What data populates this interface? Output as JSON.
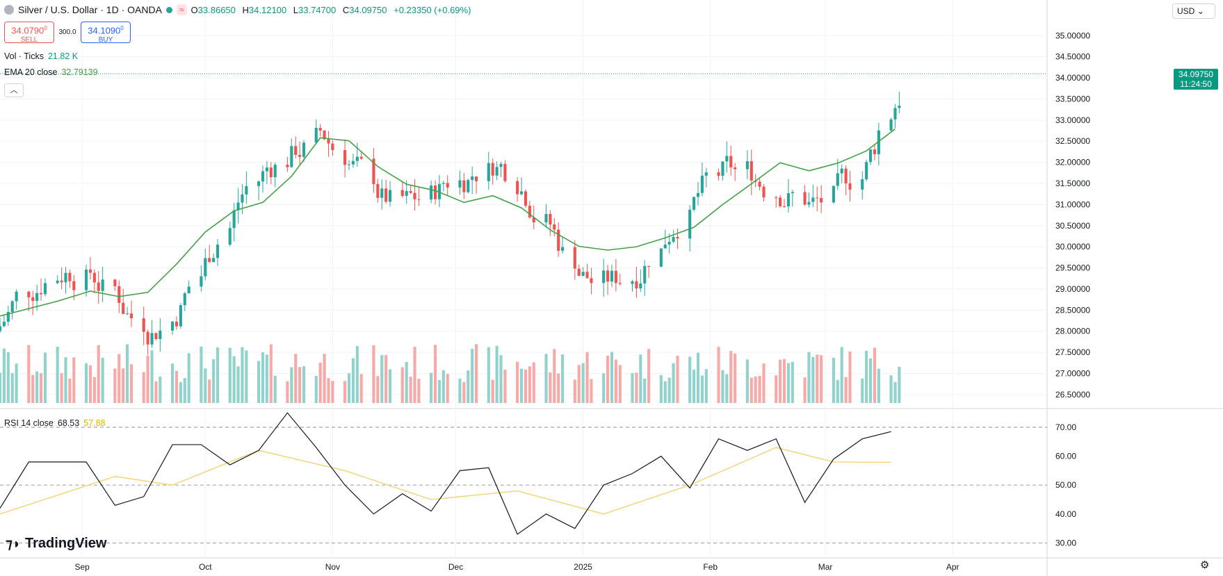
{
  "header": {
    "symbol": "Silver / U.S. Dollar · 1D · OANDA",
    "wave_badge": "≈",
    "ohlc": {
      "o_label": "O",
      "o": "33.86650",
      "h_label": "H",
      "h": "34.12100",
      "l_label": "L",
      "l": "33.74700",
      "c_label": "C",
      "c": "34.09750",
      "change": "+0.23350 (+0.69%)"
    }
  },
  "trade": {
    "sell_price": "34.0790",
    "sell_sup": "0",
    "sell_label": "SELL",
    "spread": "300.0",
    "buy_price": "34.1090",
    "buy_sup": "0",
    "buy_label": "BUY"
  },
  "indicators": {
    "vol_label": "Vol · Ticks",
    "vol_value": "21.82 K",
    "ema_label": "EMA 20 close",
    "ema_value": "32.79139",
    "rsi_label": "RSI 14 close",
    "rsi_value": "68.53",
    "rsi_ma_value": "57.88"
  },
  "currency": "USD",
  "last_price": {
    "price": "34.09750",
    "countdown": "11:24:50"
  },
  "logo_text": "TradingView",
  "colors": {
    "up": "#26a69a",
    "down": "#ef5350",
    "ema": "#43a047",
    "rsi": "#131722",
    "rsi_ma": "#f2d06b",
    "vol_up": "#92d2cc",
    "vol_down": "#f7a9a7"
  },
  "chart_data": [
    {
      "type": "candlestick",
      "title": "Silver / U.S. Dollar · 1D · OANDA",
      "price_ticks": [
        "35.00000",
        "34.50000",
        "34.00000",
        "33.50000",
        "33.00000",
        "32.50000",
        "32.00000",
        "31.50000",
        "31.00000",
        "30.50000",
        "30.00000",
        "29.50000",
        "29.00000",
        "28.50000",
        "28.00000",
        "27.50000",
        "27.00000",
        "26.50000"
      ],
      "ylim": [
        26.3,
        35.35
      ],
      "x_labels": [
        "Sep",
        "Oct",
        "Nov",
        "Dec",
        "2025",
        "Feb",
        "Mar",
        "Apr"
      ],
      "x_label_dates": [
        "2024-09-01",
        "2024-10-01",
        "2024-11-01",
        "2024-12-01",
        "2025-01-01",
        "2025-02-01",
        "2025-03-01",
        "2025-04-01"
      ],
      "x_range": [
        "2024-08-12",
        "2025-04-24"
      ],
      "grid": true,
      "series": [
        {
          "name": "EMA 20 close",
          "values": [
            {
              "d": "2024-08-12",
              "v": 28.36
            },
            {
              "d": "2024-08-26",
              "v": 28.71
            },
            {
              "d": "2024-09-03",
              "v": 28.95
            },
            {
              "d": "2024-09-10",
              "v": 28.82
            },
            {
              "d": "2024-09-17",
              "v": 28.92
            },
            {
              "d": "2024-09-24",
              "v": 29.59
            },
            {
              "d": "2024-10-01",
              "v": 30.35
            },
            {
              "d": "2024-10-08",
              "v": 30.85
            },
            {
              "d": "2024-10-15",
              "v": 31.05
            },
            {
              "d": "2024-10-22",
              "v": 31.67
            },
            {
              "d": "2024-10-29",
              "v": 32.58
            },
            {
              "d": "2024-11-05",
              "v": 32.51
            },
            {
              "d": "2024-11-12",
              "v": 31.9
            },
            {
              "d": "2024-11-19",
              "v": 31.48
            },
            {
              "d": "2024-11-26",
              "v": 31.33
            },
            {
              "d": "2024-12-03",
              "v": 31.05
            },
            {
              "d": "2024-12-10",
              "v": 31.21
            },
            {
              "d": "2024-12-17",
              "v": 30.92
            },
            {
              "d": "2024-12-24",
              "v": 30.4
            },
            {
              "d": "2024-12-31",
              "v": 30.01
            },
            {
              "d": "2025-01-07",
              "v": 29.92
            },
            {
              "d": "2025-01-14",
              "v": 30.0
            },
            {
              "d": "2025-01-21",
              "v": 30.21
            },
            {
              "d": "2025-01-28",
              "v": 30.46
            },
            {
              "d": "2025-02-04",
              "v": 31.0
            },
            {
              "d": "2025-02-11",
              "v": 31.49
            },
            {
              "d": "2025-02-18",
              "v": 31.99
            },
            {
              "d": "2025-02-25",
              "v": 31.8
            },
            {
              "d": "2025-03-04",
              "v": 31.98
            },
            {
              "d": "2025-03-11",
              "v": 32.27
            },
            {
              "d": "2025-03-18",
              "v": 32.79
            }
          ]
        },
        {
          "name": "RSI 14 close",
          "values": [
            {
              "d": "2024-08-12",
              "v": 42
            },
            {
              "d": "2024-08-19",
              "v": 58
            },
            {
              "d": "2024-08-26",
              "v": 58
            },
            {
              "d": "2024-09-02",
              "v": 58
            },
            {
              "d": "2024-09-09",
              "v": 43
            },
            {
              "d": "2024-09-16",
              "v": 46
            },
            {
              "d": "2024-09-23",
              "v": 64
            },
            {
              "d": "2024-09-30",
              "v": 64
            },
            {
              "d": "2024-10-07",
              "v": 57
            },
            {
              "d": "2024-10-14",
              "v": 62
            },
            {
              "d": "2024-10-21",
              "v": 75
            },
            {
              "d": "2024-10-28",
              "v": 63
            },
            {
              "d": "2024-11-04",
              "v": 50
            },
            {
              "d": "2024-11-11",
              "v": 40
            },
            {
              "d": "2024-11-18",
              "v": 47
            },
            {
              "d": "2024-11-25",
              "v": 41
            },
            {
              "d": "2024-12-02",
              "v": 55
            },
            {
              "d": "2024-12-09",
              "v": 56
            },
            {
              "d": "2024-12-16",
              "v": 33
            },
            {
              "d": "2024-12-23",
              "v": 40
            },
            {
              "d": "2024-12-30",
              "v": 35
            },
            {
              "d": "2025-01-06",
              "v": 50
            },
            {
              "d": "2025-01-13",
              "v": 54
            },
            {
              "d": "2025-01-20",
              "v": 60
            },
            {
              "d": "2025-01-27",
              "v": 49
            },
            {
              "d": "2025-02-03",
              "v": 66
            },
            {
              "d": "2025-02-10",
              "v": 62
            },
            {
              "d": "2025-02-17",
              "v": 66
            },
            {
              "d": "2025-02-24",
              "v": 44
            },
            {
              "d": "2025-03-03",
              "v": 59
            },
            {
              "d": "2025-03-10",
              "v": 66
            },
            {
              "d": "2025-03-17",
              "v": 68.5
            }
          ]
        },
        {
          "name": "RSI MA",
          "values": [
            {
              "d": "2024-08-12",
              "v": 40
            },
            {
              "d": "2024-09-09",
              "v": 53
            },
            {
              "d": "2024-09-23",
              "v": 50
            },
            {
              "d": "2024-10-14",
              "v": 62
            },
            {
              "d": "2024-11-04",
              "v": 55
            },
            {
              "d": "2024-11-25",
              "v": 45
            },
            {
              "d": "2024-12-16",
              "v": 48
            },
            {
              "d": "2025-01-06",
              "v": 40
            },
            {
              "d": "2025-01-27",
              "v": 50
            },
            {
              "d": "2025-02-17",
              "v": 63
            },
            {
              "d": "2025-03-03",
              "v": 58
            },
            {
              "d": "2025-03-17",
              "v": 57.88
            }
          ]
        }
      ],
      "rsi_ticks": [
        "70.00",
        "60.00",
        "50.00",
        "40.00",
        "30.00"
      ],
      "rsi_ylim": [
        26,
        76
      ],
      "rsi_bands": [
        70,
        50,
        30
      ],
      "last_close": 34.0975
    }
  ]
}
